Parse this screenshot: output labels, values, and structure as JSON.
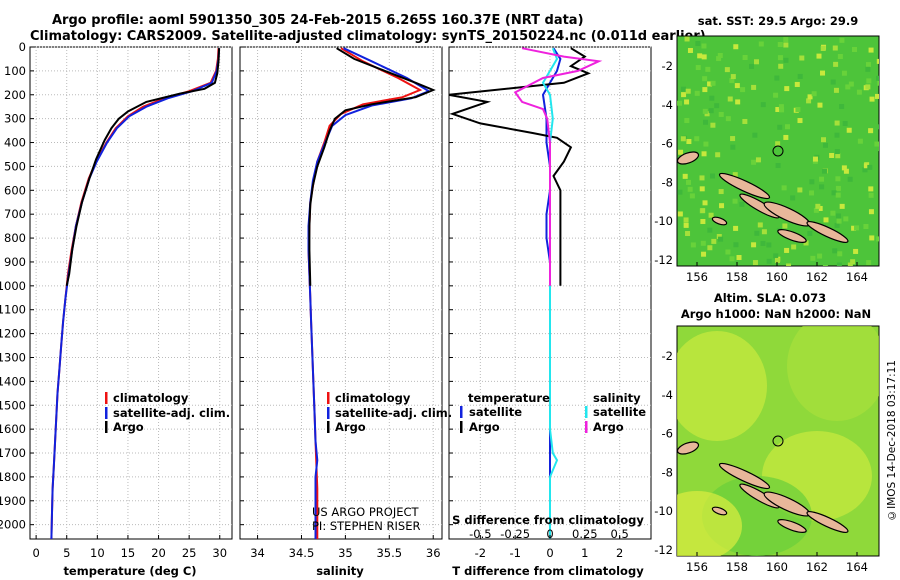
{
  "header": {
    "title_line1": "Argo profile: aoml 5901350_305 24-Feb-2015 6.265S 160.37E (NRT data)",
    "title_line2": "Climatology: CARS2009. Satellite-adjusted climatology: synTS_20150224.nc (0.011d earlier)"
  },
  "colors": {
    "climatology": "#ee1111",
    "satellite": "#1122dd",
    "argo": "#000000",
    "sal_satellite": "#22e6ee",
    "sal_argo": "#ee22dd",
    "land": "#e8b79a",
    "sst_bg": "#4dc43a",
    "sla_bg": "#8fd93a"
  },
  "depth_axis": {
    "ticks": [
      0,
      100,
      200,
      300,
      400,
      500,
      600,
      700,
      800,
      900,
      1000,
      1100,
      1200,
      1300,
      1400,
      1500,
      1600,
      1700,
      1800,
      1900,
      2000
    ],
    "range": [
      0,
      2060
    ]
  },
  "panels": {
    "temperature": {
      "xlabel": "temperature (deg C)",
      "ticks": [
        "0",
        "5",
        "10",
        "15",
        "20",
        "25",
        "30"
      ],
      "xlim": [
        -1,
        32
      ],
      "legend": [
        "climatology",
        "satellite-adj. clim.",
        "Argo"
      ]
    },
    "salinity": {
      "xlabel": "salinity",
      "ticks": [
        "34",
        "34.5",
        "35",
        "35.5",
        "36"
      ],
      "xlim": [
        33.8,
        36.1
      ],
      "legend": [
        "climatology",
        "satellite-adj. clim.",
        "Argo"
      ],
      "credit_line1": "US ARGO PROJECT",
      "credit_line2": "PI: STEPHEN RISER"
    },
    "difference": {
      "xlabel": "T difference from climatology",
      "top_label": "S difference from climatology",
      "ticks_T": [
        "-2",
        "-1",
        "0",
        "1",
        "2"
      ],
      "ticks_S": [
        "-0.5",
        "-0.25",
        "0",
        "0.25",
        "0.5"
      ],
      "legend_T_head": "temperature",
      "legend_S_head": "salinity",
      "legend_T": [
        "satellite",
        "Argo"
      ],
      "legend_S": [
        "satellite",
        "Argo"
      ]
    }
  },
  "maps": {
    "sst": {
      "title": "sat. SST: 29.5 Argo: 29.9",
      "xticks": [
        "156",
        "158",
        "160",
        "162",
        "164"
      ],
      "yticks": [
        "-2",
        "-4",
        "-6",
        "-8",
        "-10",
        "-12"
      ]
    },
    "sla": {
      "title_line1": "Altim. SLA: 0.073",
      "title_line2": "Argo h1000: NaN h2000: NaN",
      "xticks": [
        "156",
        "158",
        "160",
        "162",
        "164"
      ],
      "yticks": [
        "-2",
        "-4",
        "-6",
        "-8",
        "-10",
        "-12"
      ]
    }
  },
  "footer": {
    "stamp": "©IMOS 14-Dec-2018 03:17:11"
  },
  "chart_data": [
    {
      "type": "line",
      "title": "",
      "xlabel": "temperature (deg C)",
      "ylabel": "",
      "xlim": [
        -1,
        32
      ],
      "ylim": [
        2060,
        0
      ],
      "series": [
        {
          "name": "climatology",
          "points": [
            [
              29.8,
              5
            ],
            [
              29.7,
              50
            ],
            [
              29.4,
              100
            ],
            [
              28.5,
              150
            ],
            [
              25,
              185
            ],
            [
              21,
              215
            ],
            [
              17.5,
              250
            ],
            [
              15,
              290
            ],
            [
              13,
              340
            ],
            [
              11.5,
              400
            ],
            [
              9.8,
              480
            ],
            [
              8.6,
              550
            ],
            [
              7.4,
              650
            ],
            [
              6.5,
              750
            ],
            [
              5.8,
              850
            ],
            [
              5.2,
              950
            ],
            [
              4.8,
              1050
            ],
            [
              4.4,
              1150
            ],
            [
              4.1,
              1250
            ],
            [
              3.8,
              1350
            ],
            [
              3.5,
              1450
            ],
            [
              3.3,
              1550
            ],
            [
              3.1,
              1650
            ],
            [
              2.9,
              1750
            ],
            [
              2.7,
              1850
            ],
            [
              2.6,
              1950
            ],
            [
              2.5,
              2060
            ]
          ]
        },
        {
          "name": "satellite-adj. clim.",
          "points": [
            [
              29.9,
              5
            ],
            [
              29.8,
              50
            ],
            [
              29.5,
              100
            ],
            [
              28.7,
              150
            ],
            [
              25.5,
              185
            ],
            [
              21.5,
              215
            ],
            [
              18,
              250
            ],
            [
              15.2,
              290
            ],
            [
              13.2,
              340
            ],
            [
              11.6,
              400
            ],
            [
              9.9,
              480
            ],
            [
              8.7,
              550
            ],
            [
              7.5,
              650
            ],
            [
              6.5,
              750
            ],
            [
              5.9,
              850
            ],
            [
              5.3,
              950
            ],
            [
              4.8,
              1050
            ],
            [
              4.4,
              1150
            ],
            [
              4.1,
              1250
            ],
            [
              3.8,
              1350
            ],
            [
              3.5,
              1450
            ],
            [
              3.3,
              1550
            ],
            [
              3.1,
              1650
            ],
            [
              2.9,
              1750
            ],
            [
              2.7,
              1850
            ],
            [
              2.6,
              1950
            ],
            [
              2.5,
              2060
            ]
          ]
        },
        {
          "name": "Argo",
          "points": [
            [
              29.9,
              5
            ],
            [
              29.8,
              60
            ],
            [
              29.6,
              110
            ],
            [
              29.2,
              150
            ],
            [
              27.5,
              175
            ],
            [
              23.5,
              195
            ],
            [
              18,
              230
            ],
            [
              15,
              270
            ],
            [
              13.5,
              300
            ],
            [
              12.3,
              340
            ],
            [
              11.2,
              390
            ],
            [
              9.8,
              470
            ],
            [
              8.7,
              550
            ],
            [
              7.5,
              650
            ],
            [
              6.6,
              750
            ],
            [
              5.9,
              850
            ],
            [
              5.4,
              950
            ],
            [
              5,
              1000
            ]
          ]
        }
      ]
    },
    {
      "type": "line",
      "title": "",
      "xlabel": "salinity",
      "ylabel": "",
      "xlim": [
        33.8,
        36.1
      ],
      "ylim": [
        2060,
        0
      ],
      "series": [
        {
          "name": "climatology",
          "points": [
            [
              34.95,
              5
            ],
            [
              35.2,
              60
            ],
            [
              35.6,
              130
            ],
            [
              35.85,
              180
            ],
            [
              35.65,
              210
            ],
            [
              35.2,
              240
            ],
            [
              34.95,
              280
            ],
            [
              34.82,
              330
            ],
            [
              34.76,
              400
            ],
            [
              34.68,
              480
            ],
            [
              34.64,
              560
            ],
            [
              34.6,
              650
            ],
            [
              34.59,
              750
            ],
            [
              34.58,
              850
            ],
            [
              34.59,
              950
            ],
            [
              34.6,
              1050
            ],
            [
              34.61,
              1150
            ],
            [
              34.62,
              1250
            ],
            [
              34.63,
              1350
            ],
            [
              34.64,
              1450
            ],
            [
              34.65,
              1550
            ],
            [
              34.66,
              1650
            ],
            [
              34.67,
              1750
            ],
            [
              34.68,
              1850
            ],
            [
              34.68,
              2060
            ]
          ]
        },
        {
          "name": "satellite-adj. clim.",
          "points": [
            [
              34.98,
              5
            ],
            [
              35.3,
              60
            ],
            [
              35.7,
              130
            ],
            [
              35.95,
              185
            ],
            [
              35.75,
              215
            ],
            [
              35.3,
              245
            ],
            [
              35.0,
              285
            ],
            [
              34.85,
              330
            ],
            [
              34.77,
              400
            ],
            [
              34.68,
              480
            ],
            [
              34.63,
              560
            ],
            [
              34.6,
              650
            ],
            [
              34.58,
              750
            ],
            [
              34.58,
              850
            ],
            [
              34.59,
              950
            ],
            [
              34.6,
              1050
            ],
            [
              34.61,
              1150
            ],
            [
              34.62,
              1250
            ],
            [
              34.63,
              1350
            ],
            [
              34.64,
              1450
            ],
            [
              34.65,
              1550
            ],
            [
              34.66,
              1650
            ],
            [
              34.68,
              1730
            ],
            [
              34.66,
              1800
            ],
            [
              34.66,
              2060
            ]
          ]
        },
        {
          "name": "Argo",
          "points": [
            [
              34.9,
              5
            ],
            [
              35.1,
              50
            ],
            [
              35.45,
              100
            ],
            [
              35.8,
              150
            ],
            [
              36.0,
              180
            ],
            [
              35.8,
              210
            ],
            [
              35.3,
              240
            ],
            [
              35.0,
              265
            ],
            [
              34.88,
              300
            ],
            [
              34.82,
              350
            ],
            [
              34.76,
              420
            ],
            [
              34.68,
              500
            ],
            [
              34.63,
              580
            ],
            [
              34.6,
              660
            ],
            [
              34.59,
              750
            ],
            [
              34.59,
              850
            ],
            [
              34.6,
              1000
            ]
          ]
        }
      ]
    },
    {
      "type": "line",
      "title": "",
      "xlabel": "T difference from climatology",
      "ylabel": "",
      "xlim": [
        -2.9,
        2.9
      ],
      "ylim": [
        2060,
        0
      ],
      "series": [
        {
          "name": "satellite",
          "points": [
            [
              0.1,
              5
            ],
            [
              0.3,
              50
            ],
            [
              0.2,
              100
            ],
            [
              0.0,
              150
            ],
            [
              -0.2,
              200
            ],
            [
              -0.1,
              300
            ],
            [
              -0.1,
              400
            ],
            [
              0.0,
              500
            ],
            [
              0.0,
              600
            ],
            [
              -0.1,
              700
            ],
            [
              -0.1,
              800
            ],
            [
              0.0,
              900
            ],
            [
              0.0,
              1000
            ],
            [
              0.0,
              1200
            ],
            [
              0.0,
              1400
            ],
            [
              0.0,
              1600
            ],
            [
              0.0,
              1800
            ],
            [
              0.0,
              2060
            ]
          ]
        },
        {
          "name": "Argo",
          "points": [
            [
              0.6,
              5
            ],
            [
              1.0,
              40
            ],
            [
              0.6,
              80
            ],
            [
              1.1,
              110
            ],
            [
              0.4,
              150
            ],
            [
              -2.9,
              200
            ],
            [
              -1.8,
              230
            ],
            [
              -2.8,
              280
            ],
            [
              -2.0,
              320
            ],
            [
              -0.5,
              360
            ],
            [
              0.2,
              380
            ],
            [
              0.6,
              420
            ],
            [
              0.4,
              480
            ],
            [
              0.1,
              540
            ],
            [
              0.3,
              600
            ],
            [
              0.3,
              700
            ],
            [
              0.3,
              800
            ],
            [
              0.3,
              900
            ],
            [
              0.3,
              1000
            ]
          ]
        }
      ]
    },
    {
      "type": "line",
      "title": "",
      "xlabel": "S difference from climatology",
      "ylabel": "",
      "xlim": [
        -0.725,
        0.725
      ],
      "ylim": [
        2060,
        0
      ],
      "series": [
        {
          "name": "satellite",
          "points": [
            [
              0.02,
              5
            ],
            [
              0.05,
              50
            ],
            [
              0.0,
              100
            ],
            [
              -0.05,
              150
            ],
            [
              0.0,
              200
            ],
            [
              0.02,
              300
            ],
            [
              0.0,
              400
            ],
            [
              0.0,
              600
            ],
            [
              0.0,
              800
            ],
            [
              0.0,
              1000
            ],
            [
              0.0,
              1200
            ],
            [
              0.0,
              1400
            ],
            [
              0.0,
              1600
            ],
            [
              0.02,
              1700
            ],
            [
              0.05,
              1730
            ],
            [
              0.0,
              1800
            ],
            [
              0.0,
              2060
            ]
          ]
        },
        {
          "name": "Argo",
          "points": [
            [
              -0.2,
              5
            ],
            [
              0.1,
              40
            ],
            [
              0.35,
              60
            ],
            [
              0.2,
              100
            ],
            [
              -0.05,
              130
            ],
            [
              -0.25,
              190
            ],
            [
              -0.2,
              230
            ],
            [
              -0.05,
              260
            ],
            [
              -0.02,
              300
            ],
            [
              0.0,
              400
            ],
            [
              0.0,
              600
            ],
            [
              0.0,
              800
            ],
            [
              0.0,
              1000
            ]
          ]
        }
      ]
    }
  ]
}
